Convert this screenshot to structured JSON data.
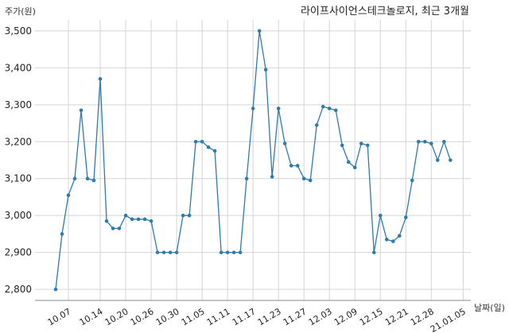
{
  "chart_data": {
    "type": "line",
    "title": "라이프사이언스테크놀로지, 최근 3개월",
    "ylabel": "주가(원)",
    "xlabel": "날짜(일)",
    "ylim": [
      2770,
      3530
    ],
    "yticks": [
      2800,
      2900,
      3000,
      3100,
      3200,
      3300,
      3400,
      3500
    ],
    "ytick_labels": [
      "2,800",
      "2,900",
      "3,000",
      "3,100",
      "3,200",
      "3,300",
      "3,400",
      "3,500"
    ],
    "xtick_labels": [
      "10.07",
      "10.14",
      "10.20",
      "10.26",
      "10.30",
      "11.05",
      "11.11",
      "11.17",
      "11.23",
      "11.27",
      "12.03",
      "12.09",
      "12.15",
      "12.21",
      "12.28",
      "21.01.05"
    ],
    "xtick_index": [
      2,
      7,
      11,
      15,
      19,
      23,
      27,
      31,
      35,
      39,
      43,
      47,
      51,
      55,
      59,
      64
    ],
    "grid": true,
    "line_color": "#2e7bad",
    "values": [
      2800,
      2950,
      3055,
      3100,
      3285,
      3100,
      3095,
      3370,
      2985,
      2965,
      2965,
      3000,
      2990,
      2990,
      2990,
      2985,
      2900,
      2900,
      2900,
      2900,
      3000,
      3000,
      3200,
      3200,
      3185,
      3175,
      2900,
      2900,
      2900,
      2900,
      3100,
      3290,
      3500,
      3395,
      3105,
      3290,
      3195,
      3135,
      3135,
      3100,
      3095,
      3245,
      3295,
      3290,
      3285,
      3190,
      3145,
      3130,
      3195,
      3190,
      2900,
      3000,
      2935,
      2930,
      2945,
      2995,
      3095,
      3200,
      3200,
      3195,
      3150,
      3200,
      3150
    ]
  }
}
